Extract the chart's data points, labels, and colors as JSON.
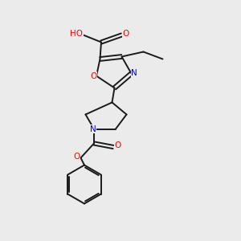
{
  "bg_color": "#ebebeb",
  "bond_color": "#1a1a1a",
  "O_color": "#ff0000",
  "N_color": "#0000cc",
  "H_color": "#808080",
  "bond_width": 1.4,
  "figsize": [
    3.0,
    3.0
  ],
  "dpi": 100,
  "xlim": [
    0,
    10
  ],
  "ylim": [
    0,
    10
  ],
  "font_size": 7.5
}
